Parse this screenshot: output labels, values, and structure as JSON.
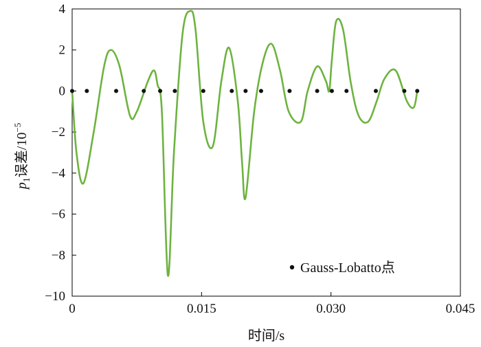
{
  "chart_data": {
    "type": "line",
    "title": "",
    "xlabel": "时间/s",
    "ylabel": {
      "symbol": "p",
      "subscript": "1",
      "text": "误差/10",
      "exponent": "−5"
    },
    "xlim": [
      0,
      0.045
    ],
    "ylim": [
      -10,
      4
    ],
    "x_ticks": [
      0,
      0.015,
      0.03,
      0.045
    ],
    "x_tick_labels": [
      "0",
      "0.015",
      "0.030",
      "0.045"
    ],
    "y_ticks": [
      -10,
      -8,
      -6,
      -4,
      -2,
      0,
      2,
      4
    ],
    "y_tick_labels": [
      "−10",
      "−8",
      "−6",
      "−4",
      "−2",
      "0",
      "2",
      "4"
    ],
    "grid": false,
    "legend": {
      "position": "bottom-right",
      "label": "Gauss-Lobatto点"
    },
    "series": [
      {
        "kind": "line",
        "color": "#6db33f",
        "x": [
          0,
          0.0005,
          0.0013,
          0.0025,
          0.0037,
          0.0045,
          0.0055,
          0.0067,
          0.0075,
          0.0088,
          0.0095,
          0.0099,
          0.0104,
          0.0111,
          0.0118,
          0.0128,
          0.0137,
          0.0143,
          0.0152,
          0.0163,
          0.0173,
          0.0182,
          0.0192,
          0.0197,
          0.0201,
          0.0211,
          0.0221,
          0.0231,
          0.0241,
          0.0251,
          0.0265,
          0.0273,
          0.0284,
          0.0294,
          0.0298,
          0.0301,
          0.0306,
          0.0314,
          0.0323,
          0.0332,
          0.0343,
          0.0353,
          0.0362,
          0.0375,
          0.0388,
          0.0396,
          0.04
        ],
        "y": [
          0,
          -3.0,
          -4.5,
          -2.0,
          1.2,
          2.0,
          1.2,
          -1.2,
          -1.0,
          0.5,
          1.0,
          0.3,
          -1.0,
          -9.0,
          -3.0,
          2.8,
          3.9,
          3.0,
          -1.5,
          -2.7,
          0.5,
          2.1,
          -0.5,
          -3.5,
          -5.2,
          -1.0,
          1.4,
          2.3,
          1.0,
          -1.0,
          -1.5,
          0.0,
          1.2,
          0.5,
          0.0,
          1.5,
          3.4,
          3.0,
          0.4,
          -1.2,
          -1.5,
          -0.5,
          0.6,
          1.0,
          -0.5,
          -0.8,
          0.0
        ]
      },
      {
        "kind": "scatter",
        "name": "Gauss-Lobatto点",
        "color": "#111111",
        "x": [
          0,
          0.0017,
          0.0051,
          0.0083,
          0.0102,
          0.0119,
          0.0152,
          0.0185,
          0.0201,
          0.0219,
          0.0252,
          0.0284,
          0.0301,
          0.0318,
          0.0352,
          0.0385,
          0.04
        ],
        "y": [
          0,
          0,
          0,
          0,
          0,
          0,
          0,
          0,
          0,
          0,
          0,
          0,
          0,
          0,
          0,
          0,
          0
        ]
      }
    ]
  }
}
